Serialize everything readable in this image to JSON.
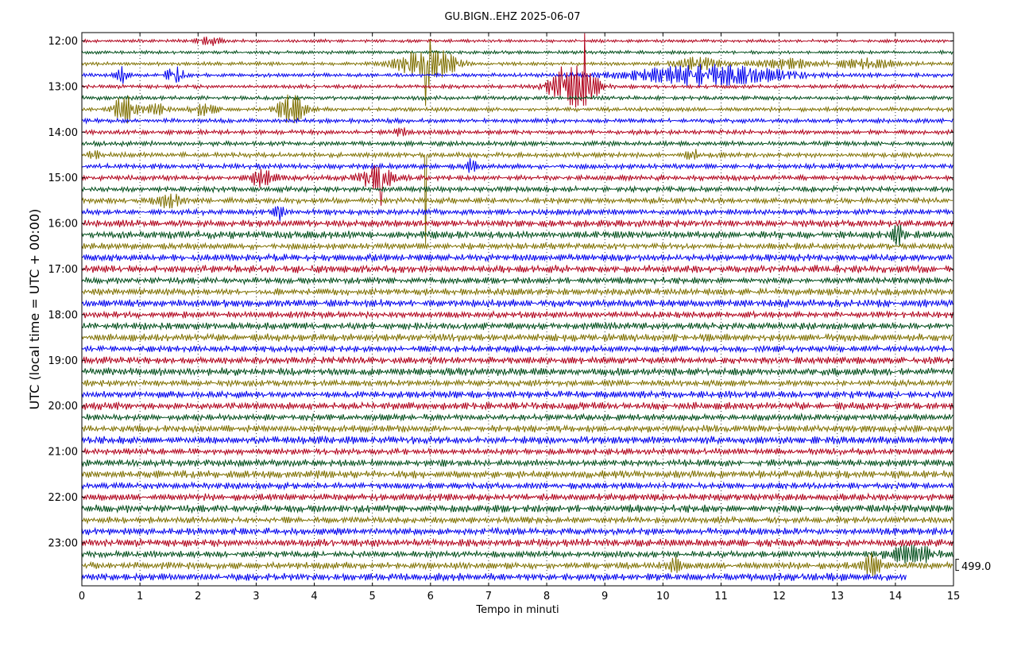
{
  "chart_data": {
    "type": "line",
    "title": "GU.BIGN..EHZ 2025-06-07",
    "xlabel": "Tempo in minuti",
    "ylabel": "UTC (local time = UTC + 00:00)",
    "xlim": [
      0,
      15
    ],
    "x_ticks": [
      "0",
      "1",
      "2",
      "3",
      "4",
      "5",
      "6",
      "7",
      "8",
      "9",
      "10",
      "11",
      "12",
      "13",
      "14",
      "15"
    ],
    "y_ticks": [
      "12:00",
      "13:00",
      "14:00",
      "15:00",
      "16:00",
      "17:00",
      "18:00",
      "19:00",
      "20:00",
      "21:00",
      "22:00",
      "23:00"
    ],
    "rows_per_hour": 4,
    "row_count": 48,
    "row_minutes": 15,
    "first_row_time": "12:00",
    "last_row_end_minute": 14.2,
    "trace_colors": [
      "#b0001a",
      "#004d1a",
      "#7f7000",
      "#0000ee"
    ],
    "scale_value": "499.0",
    "grid": true,
    "events": [
      {
        "row": 0,
        "minute": 2.2,
        "amp": 0.35,
        "width": 0.2
      },
      {
        "row": 2,
        "minute": 5.7,
        "amp": 0.9,
        "width": 0.35
      },
      {
        "row": 2,
        "minute": 6.2,
        "amp": 1.0,
        "width": 0.3
      },
      {
        "row": 2,
        "minute": 10.6,
        "amp": 0.5,
        "width": 0.4
      },
      {
        "row": 2,
        "minute": 12.1,
        "amp": 0.4,
        "width": 0.5
      },
      {
        "row": 2,
        "minute": 13.5,
        "amp": 0.4,
        "width": 0.5
      },
      {
        "row": 3,
        "minute": 0.7,
        "amp": 0.7,
        "width": 0.1
      },
      {
        "row": 3,
        "minute": 1.6,
        "amp": 0.7,
        "width": 0.15
      },
      {
        "row": 3,
        "minute": 10.8,
        "amp": 0.9,
        "width": 1.3
      },
      {
        "row": 4,
        "minute": 8.3,
        "amp": 1.2,
        "width": 0.3
      },
      {
        "row": 4,
        "minute": 8.65,
        "amp": 1.4,
        "width": 0.25
      },
      {
        "row": 6,
        "minute": 0.75,
        "amp": 1.2,
        "width": 0.2
      },
      {
        "row": 6,
        "minute": 1.3,
        "amp": 0.5,
        "width": 0.15
      },
      {
        "row": 6,
        "minute": 2.1,
        "amp": 0.5,
        "width": 0.2
      },
      {
        "row": 6,
        "minute": 3.6,
        "amp": 1.3,
        "width": 0.22
      },
      {
        "row": 8,
        "minute": 5.5,
        "amp": 0.5,
        "width": 0.08
      },
      {
        "row": 10,
        "minute": 0.2,
        "amp": 0.4,
        "width": 0.08
      },
      {
        "row": 10,
        "minute": 10.5,
        "amp": 0.5,
        "width": 0.1
      },
      {
        "row": 11,
        "minute": 6.7,
        "amp": 0.6,
        "width": 0.08
      },
      {
        "row": 12,
        "minute": 3.1,
        "amp": 0.7,
        "width": 0.2
      },
      {
        "row": 12,
        "minute": 5.1,
        "amp": 1.0,
        "width": 0.3
      },
      {
        "row": 14,
        "minute": 1.5,
        "amp": 0.5,
        "width": 0.25
      },
      {
        "row": 15,
        "minute": 3.4,
        "amp": 0.6,
        "width": 0.08
      },
      {
        "row": 17,
        "minute": 14.05,
        "amp": 0.7,
        "width": 0.1
      },
      {
        "row": 46,
        "minute": 10.2,
        "amp": 0.6,
        "width": 0.1
      },
      {
        "row": 46,
        "minute": 13.6,
        "amp": 0.9,
        "width": 0.15
      },
      {
        "row": 45,
        "minute": 14.3,
        "amp": 0.7,
        "width": 0.4
      }
    ],
    "spikes": [
      {
        "row": 2,
        "minute": 5.92,
        "amp": 3.8
      },
      {
        "row": 2,
        "minute": 5.98,
        "amp": 2.2
      },
      {
        "row": 4,
        "minute": 8.65,
        "amp": 4.8
      },
      {
        "row": 4,
        "minute": 8.25,
        "amp": 1.8
      },
      {
        "row": 10,
        "minute": 5.92,
        "amp": 8.0
      },
      {
        "row": 12,
        "minute": 5.15,
        "amp": 2.5
      }
    ]
  }
}
